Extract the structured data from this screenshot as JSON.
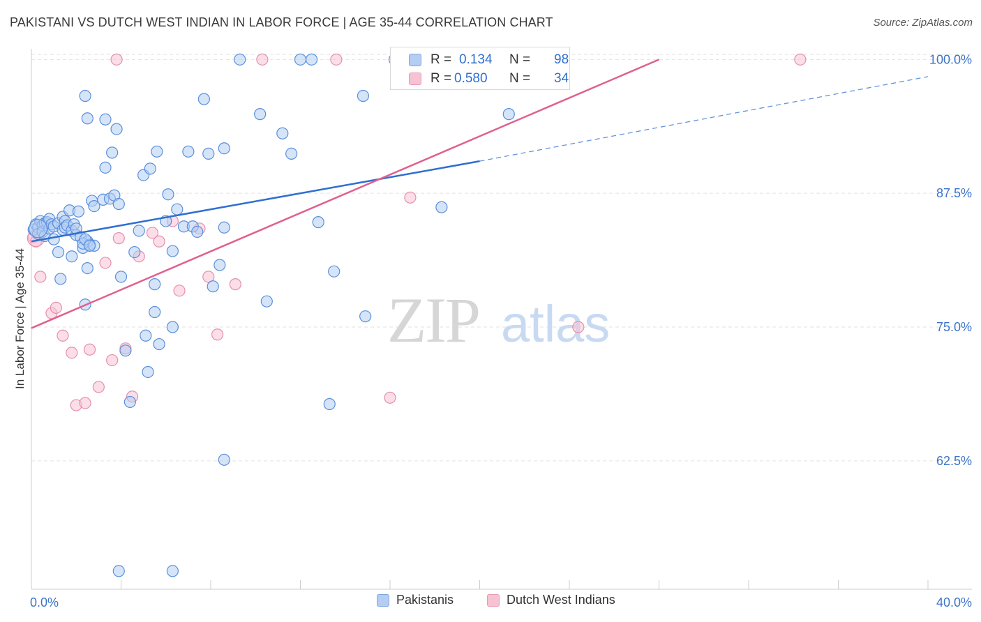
{
  "title": "PAKISTANI VS DUTCH WEST INDIAN IN LABOR FORCE | AGE 35-44 CORRELATION CHART",
  "source": "Source: ZipAtlas.com",
  "watermark": {
    "zip": "ZIP",
    "atlas": "atlas"
  },
  "stats": {
    "pakistanis": {
      "r_label": "R =",
      "r_value": "0.134",
      "n_label": "N =",
      "n_value": "98"
    },
    "dutch": {
      "r_label": "R =",
      "r_value": "0.580",
      "n_label": "N =",
      "n_value": "34"
    }
  },
  "chart_data": {
    "type": "scatter",
    "title": "PAKISTANI VS DUTCH WEST INDIAN IN LABOR FORCE | AGE 35-44 CORRELATION CHART",
    "xlabel": "",
    "ylabel": "In Labor Force | Age 35-44",
    "xlim": [
      0,
      40
    ],
    "ylim": [
      50.5,
      101
    ],
    "x_tick_labels": [
      "0.0%",
      "40.0%"
    ],
    "y_ticks": [
      62.5,
      75.0,
      87.5,
      100.0
    ],
    "y_tick_labels": [
      "62.5%",
      "75.0%",
      "87.5%",
      "100.0%"
    ],
    "grid": true,
    "legend_position": "bottom",
    "colors": {
      "pakistanis": "#2f6fd0",
      "dutch": "#e0608e",
      "pakistanis_fill": "#b5cdf3",
      "dutch_fill": "#f7c3d3"
    },
    "series": [
      {
        "name": "Pakistanis",
        "color": "#2f6fd0",
        "trend": {
          "x": [
            0.0,
            20.0
          ],
          "y": [
            83.0,
            90.5
          ],
          "dashed_to": [
            40.0,
            98.4
          ]
        },
        "points": [
          [
            0.1,
            84.1
          ],
          [
            0.2,
            84.6
          ],
          [
            0.3,
            84.3
          ],
          [
            0.3,
            83.7
          ],
          [
            0.4,
            84.9
          ],
          [
            0.5,
            84.5
          ],
          [
            0.5,
            83.9
          ],
          [
            0.6,
            84.7
          ],
          [
            0.6,
            83.5
          ],
          [
            0.7,
            84.8
          ],
          [
            0.8,
            85.1
          ],
          [
            0.8,
            84.2
          ],
          [
            0.9,
            84.6
          ],
          [
            1.0,
            83.2
          ],
          [
            1.0,
            84.4
          ],
          [
            1.2,
            84.7
          ],
          [
            1.2,
            82.0
          ],
          [
            1.3,
            79.5
          ],
          [
            1.4,
            85.3
          ],
          [
            1.4,
            84.1
          ],
          [
            1.5,
            84.9
          ],
          [
            1.5,
            84.3
          ],
          [
            1.6,
            84.5
          ],
          [
            1.7,
            85.9
          ],
          [
            1.8,
            84.0
          ],
          [
            1.8,
            81.6
          ],
          [
            1.9,
            84.6
          ],
          [
            2.0,
            83.6
          ],
          [
            2.0,
            84.2
          ],
          [
            2.1,
            85.8
          ],
          [
            2.2,
            83.4
          ],
          [
            2.3,
            82.4
          ],
          [
            2.4,
            77.1
          ],
          [
            2.5,
            80.5
          ],
          [
            2.5,
            83.0
          ],
          [
            2.6,
            82.7
          ],
          [
            2.7,
            86.8
          ],
          [
            2.8,
            86.3
          ],
          [
            2.8,
            82.6
          ],
          [
            2.5,
            94.5
          ],
          [
            2.3,
            82.8
          ],
          [
            2.4,
            83.2
          ],
          [
            2.4,
            96.6
          ],
          [
            2.6,
            82.6
          ],
          [
            3.2,
            86.9
          ],
          [
            3.3,
            89.9
          ],
          [
            3.3,
            94.4
          ],
          [
            3.5,
            87.0
          ],
          [
            3.6,
            91.3
          ],
          [
            3.7,
            87.3
          ],
          [
            3.8,
            93.5
          ],
          [
            3.9,
            86.5
          ],
          [
            4.0,
            79.7
          ],
          [
            4.2,
            72.8
          ],
          [
            4.4,
            68.0
          ],
          [
            4.6,
            82.0
          ],
          [
            4.8,
            84.0
          ],
          [
            5.0,
            89.2
          ],
          [
            5.2,
            70.8
          ],
          [
            5.3,
            89.8
          ],
          [
            5.5,
            76.4
          ],
          [
            5.5,
            79.0
          ],
          [
            5.6,
            91.4
          ],
          [
            5.7,
            73.4
          ],
          [
            6.0,
            84.9
          ],
          [
            6.1,
            87.4
          ],
          [
            6.3,
            82.1
          ],
          [
            6.5,
            86.0
          ],
          [
            6.8,
            84.4
          ],
          [
            7.0,
            91.4
          ],
          [
            7.2,
            84.4
          ],
          [
            7.4,
            83.9
          ],
          [
            7.7,
            96.3
          ],
          [
            7.9,
            91.2
          ],
          [
            8.1,
            78.8
          ],
          [
            8.4,
            80.8
          ],
          [
            8.6,
            84.3
          ],
          [
            8.6,
            91.7
          ],
          [
            6.3,
            75.0
          ],
          [
            5.1,
            74.2
          ],
          [
            6.3,
            52.2
          ],
          [
            8.6,
            62.6
          ],
          [
            9.3,
            100.0
          ],
          [
            10.2,
            94.9
          ],
          [
            10.5,
            77.4
          ],
          [
            11.2,
            93.1
          ],
          [
            11.6,
            91.2
          ],
          [
            12.0,
            100.0
          ],
          [
            12.5,
            100.0
          ],
          [
            12.8,
            84.8
          ],
          [
            13.5,
            80.2
          ],
          [
            14.8,
            96.6
          ],
          [
            14.9,
            76.0
          ],
          [
            16.2,
            100.0
          ],
          [
            18.3,
            86.2
          ],
          [
            21.3,
            94.9
          ],
          [
            13.3,
            67.8
          ],
          [
            3.9,
            52.2
          ]
        ]
      },
      {
        "name": "Dutch West Indians",
        "color": "#e0608e",
        "trend": {
          "x": [
            0.0,
            28.0
          ],
          "y": [
            74.9,
            100.0
          ]
        },
        "points": [
          [
            0.1,
            83.4
          ],
          [
            0.2,
            83.0
          ],
          [
            0.4,
            79.7
          ],
          [
            0.9,
            76.3
          ],
          [
            1.1,
            76.8
          ],
          [
            1.4,
            74.2
          ],
          [
            1.8,
            72.6
          ],
          [
            2.0,
            67.7
          ],
          [
            2.4,
            67.9
          ],
          [
            2.6,
            72.9
          ],
          [
            3.0,
            69.4
          ],
          [
            3.3,
            81.0
          ],
          [
            3.6,
            71.9
          ],
          [
            3.9,
            83.3
          ],
          [
            4.2,
            73.0
          ],
          [
            4.5,
            68.5
          ],
          [
            4.8,
            81.6
          ],
          [
            5.4,
            83.8
          ],
          [
            5.7,
            83.0
          ],
          [
            6.3,
            84.9
          ],
          [
            6.6,
            78.4
          ],
          [
            7.5,
            84.2
          ],
          [
            7.9,
            79.7
          ],
          [
            8.3,
            74.3
          ],
          [
            9.1,
            79.0
          ],
          [
            10.3,
            100.0
          ],
          [
            13.6,
            100.0
          ],
          [
            16.0,
            68.4
          ],
          [
            16.9,
            87.1
          ],
          [
            17.6,
            100.0
          ],
          [
            21.0,
            100.0
          ],
          [
            24.4,
            75.0
          ],
          [
            34.3,
            100.0
          ],
          [
            3.8,
            100.0
          ]
        ]
      }
    ]
  },
  "legend": {
    "pakistanis": "Pakistanis",
    "dutch": "Dutch West Indians"
  }
}
